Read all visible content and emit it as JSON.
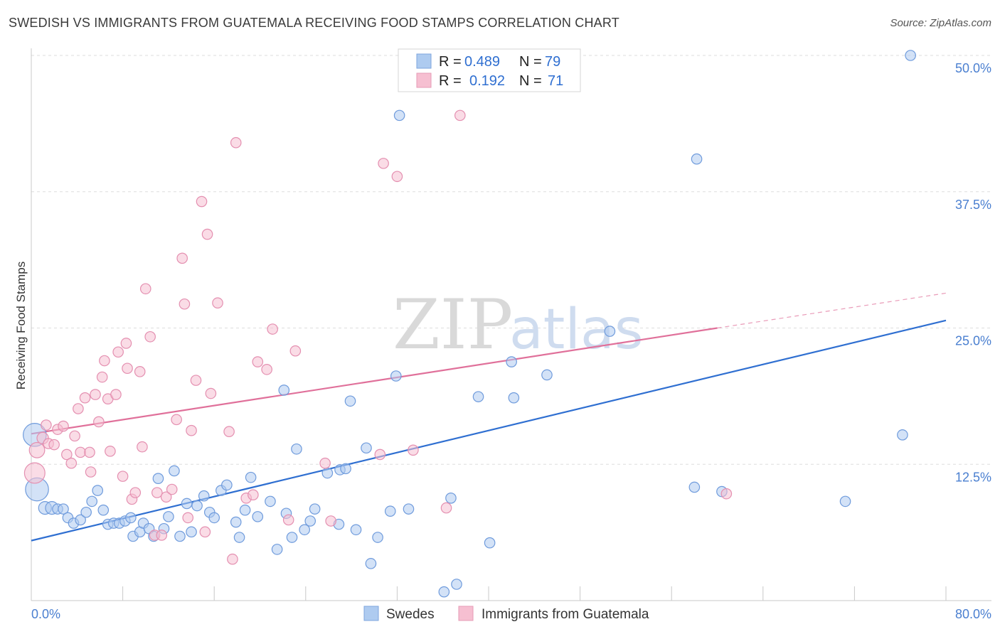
{
  "title": "SWEDISH VS IMMIGRANTS FROM GUATEMALA RECEIVING FOOD STAMPS CORRELATION CHART",
  "source": "Source: ZipAtlas.com",
  "watermark": {
    "zip": "ZIP",
    "atlas": "atlas"
  },
  "colors": {
    "blue": "#2f6fd1",
    "blue_fill": "#aecbf0",
    "pink": "#e0709a",
    "pink_fill": "#f6bfd1"
  },
  "legend": {
    "rows": [
      {
        "r_label": "R =",
        "r_value": "0.489",
        "n_label": "N =",
        "n_value": "79"
      },
      {
        "r_label": "R =",
        "r_value": "0.192",
        "n_label": "N =",
        "n_value": "71"
      }
    ]
  },
  "bottom_legend": [
    "Swedes",
    "Immigrants from Guatemala"
  ],
  "chart_data": {
    "type": "scatter",
    "title": "SWEDISH VS IMMIGRANTS FROM GUATEMALA RECEIVING FOOD STAMPS CORRELATION CHART",
    "xlabel": "",
    "ylabel": "Receiving Food Stamps",
    "xlim": [
      0,
      80
    ],
    "ylim": [
      0,
      50
    ],
    "x_tick_labels": [
      "0.0%",
      "80.0%"
    ],
    "y_ticks": [
      12.5,
      25.0,
      37.5,
      50.0
    ],
    "y_tick_labels": [
      "12.5%",
      "25.0%",
      "37.5%",
      "50.0%"
    ],
    "grid": "horizontal dashed",
    "legend_placement": "top-center",
    "series": [
      {
        "name": "Swedes",
        "color": "#2f6fd1",
        "r": 0.489,
        "n": 79,
        "trend": {
          "x": [
            0,
            80
          ],
          "y": [
            5.5,
            25.7
          ]
        },
        "points": [
          [
            0.3,
            15.2,
            1.8
          ],
          [
            0.5,
            10.2,
            1.8
          ],
          [
            1.2,
            8.5,
            1.0
          ],
          [
            1.8,
            8.5,
            1.0
          ],
          [
            2.3,
            8.4,
            0.8
          ],
          [
            2.8,
            8.4,
            0.8
          ],
          [
            3.2,
            7.6,
            0.8
          ],
          [
            3.7,
            7.1,
            0.8
          ],
          [
            4.3,
            7.4,
            0.8
          ],
          [
            4.8,
            8.1,
            0.8
          ],
          [
            5.3,
            9.1,
            0.8
          ],
          [
            5.8,
            10.1,
            0.8
          ],
          [
            6.3,
            8.3,
            0.8
          ],
          [
            6.7,
            7.0,
            0.8
          ],
          [
            7.2,
            7.1,
            0.8
          ],
          [
            7.7,
            7.1,
            0.8
          ],
          [
            8.2,
            7.3,
            0.8
          ],
          [
            8.7,
            7.6,
            0.8
          ],
          [
            8.9,
            5.9,
            0.8
          ],
          [
            9.5,
            6.3,
            0.8
          ],
          [
            9.8,
            7.1,
            0.8
          ],
          [
            10.3,
            6.6,
            0.8
          ],
          [
            10.7,
            5.9,
            0.8
          ],
          [
            11.1,
            11.2,
            0.8
          ],
          [
            11.6,
            6.6,
            0.8
          ],
          [
            12.0,
            7.7,
            0.8
          ],
          [
            12.5,
            11.9,
            0.8
          ],
          [
            13.0,
            5.9,
            0.8
          ],
          [
            13.6,
            8.9,
            0.8
          ],
          [
            14.0,
            6.3,
            0.8
          ],
          [
            14.5,
            8.7,
            0.8
          ],
          [
            15.1,
            9.6,
            0.8
          ],
          [
            15.6,
            8.1,
            0.8
          ],
          [
            16.0,
            7.6,
            0.8
          ],
          [
            16.6,
            10.1,
            0.8
          ],
          [
            17.1,
            10.6,
            0.8
          ],
          [
            17.9,
            7.2,
            0.8
          ],
          [
            18.2,
            5.8,
            0.8
          ],
          [
            18.7,
            8.3,
            0.8
          ],
          [
            19.2,
            11.3,
            0.8
          ],
          [
            19.8,
            7.7,
            0.8
          ],
          [
            20.9,
            9.1,
            0.8
          ],
          [
            21.5,
            4.7,
            0.8
          ],
          [
            22.1,
            19.3,
            0.8
          ],
          [
            22.3,
            8.0,
            0.8
          ],
          [
            22.8,
            5.8,
            0.8
          ],
          [
            23.2,
            13.9,
            0.8
          ],
          [
            23.9,
            6.5,
            0.8
          ],
          [
            24.4,
            7.3,
            0.8
          ],
          [
            24.8,
            8.4,
            0.8
          ],
          [
            25.9,
            11.7,
            0.8
          ],
          [
            26.9,
            7.0,
            0.8
          ],
          [
            27.0,
            12.0,
            0.8
          ],
          [
            27.5,
            12.1,
            0.8
          ],
          [
            27.9,
            18.3,
            0.8
          ],
          [
            28.4,
            6.5,
            0.8
          ],
          [
            29.3,
            14.0,
            0.8
          ],
          [
            29.7,
            3.4,
            0.8
          ],
          [
            30.3,
            5.8,
            0.8
          ],
          [
            31.4,
            8.2,
            0.8
          ],
          [
            31.9,
            20.6,
            0.8
          ],
          [
            32.2,
            44.5,
            0.8
          ],
          [
            33.0,
            8.4,
            0.8
          ],
          [
            36.1,
            0.8,
            0.8
          ],
          [
            36.7,
            9.4,
            0.8
          ],
          [
            37.2,
            1.5,
            0.8
          ],
          [
            39.1,
            18.7,
            0.8
          ],
          [
            40.1,
            5.3,
            0.8
          ],
          [
            42.0,
            21.9,
            0.8
          ],
          [
            42.2,
            18.6,
            0.8
          ],
          [
            45.1,
            20.7,
            0.8
          ],
          [
            50.6,
            24.7,
            0.8
          ],
          [
            58.0,
            10.4,
            0.8
          ],
          [
            58.2,
            40.5,
            0.8
          ],
          [
            60.4,
            10.0,
            0.8
          ],
          [
            71.2,
            9.1,
            0.8
          ],
          [
            76.2,
            15.2,
            0.8
          ],
          [
            76.9,
            50.0,
            0.8
          ]
        ]
      },
      {
        "name": "Immigrants from Guatemala",
        "color": "#e0709a",
        "r": 0.192,
        "n": 71,
        "trend": {
          "x": [
            0,
            60
          ],
          "y": [
            15.3,
            25.0
          ]
        },
        "trend_dashed": {
          "x": [
            60,
            80
          ],
          "y": [
            25.0,
            28.2
          ]
        },
        "points": [
          [
            0.3,
            11.7,
            1.6
          ],
          [
            0.5,
            13.8,
            1.2
          ],
          [
            1.0,
            14.9,
            0.9
          ],
          [
            1.3,
            16.1,
            0.8
          ],
          [
            1.5,
            14.4,
            0.8
          ],
          [
            2.0,
            14.3,
            0.8
          ],
          [
            2.3,
            15.7,
            0.8
          ],
          [
            2.8,
            16.0,
            0.8
          ],
          [
            3.1,
            13.4,
            0.8
          ],
          [
            3.5,
            12.6,
            0.8
          ],
          [
            3.8,
            15.1,
            0.8
          ],
          [
            4.1,
            17.6,
            0.8
          ],
          [
            4.3,
            13.6,
            0.8
          ],
          [
            4.7,
            18.6,
            0.8
          ],
          [
            5.1,
            13.6,
            0.8
          ],
          [
            5.2,
            11.8,
            0.8
          ],
          [
            5.6,
            18.9,
            0.8
          ],
          [
            5.9,
            16.4,
            0.8
          ],
          [
            6.2,
            20.5,
            0.8
          ],
          [
            6.4,
            22.0,
            0.8
          ],
          [
            6.7,
            18.5,
            0.8
          ],
          [
            6.9,
            13.7,
            0.8
          ],
          [
            7.4,
            18.9,
            0.8
          ],
          [
            7.6,
            22.8,
            0.8
          ],
          [
            8.0,
            11.4,
            0.8
          ],
          [
            8.3,
            23.6,
            0.8
          ],
          [
            8.4,
            21.3,
            0.8
          ],
          [
            8.8,
            9.3,
            0.8
          ],
          [
            9.1,
            9.9,
            0.8
          ],
          [
            9.5,
            21.0,
            0.8
          ],
          [
            9.7,
            14.1,
            0.8
          ],
          [
            10.0,
            28.6,
            0.8
          ],
          [
            10.4,
            24.2,
            0.8
          ],
          [
            10.8,
            6.0,
            0.8
          ],
          [
            11.0,
            9.9,
            0.8
          ],
          [
            11.4,
            6.0,
            0.8
          ],
          [
            11.8,
            9.5,
            0.8
          ],
          [
            12.3,
            10.2,
            0.8
          ],
          [
            12.7,
            16.6,
            0.8
          ],
          [
            13.2,
            31.4,
            0.8
          ],
          [
            13.4,
            27.2,
            0.8
          ],
          [
            13.7,
            7.6,
            0.8
          ],
          [
            14.0,
            15.6,
            0.8
          ],
          [
            14.4,
            20.2,
            0.8
          ],
          [
            14.9,
            36.6,
            0.8
          ],
          [
            15.2,
            6.3,
            0.8
          ],
          [
            15.4,
            33.6,
            0.8
          ],
          [
            15.7,
            19.0,
            0.8
          ],
          [
            16.3,
            27.3,
            0.8
          ],
          [
            17.3,
            15.5,
            0.8
          ],
          [
            17.6,
            3.8,
            0.8
          ],
          [
            17.9,
            42.0,
            0.8
          ],
          [
            18.8,
            9.4,
            0.8
          ],
          [
            19.4,
            9.7,
            0.8
          ],
          [
            19.8,
            21.9,
            0.8
          ],
          [
            20.6,
            21.2,
            0.8
          ],
          [
            21.1,
            24.9,
            0.8
          ],
          [
            22.5,
            7.4,
            0.8
          ],
          [
            23.1,
            22.9,
            0.8
          ],
          [
            25.7,
            12.6,
            0.8
          ],
          [
            26.2,
            7.3,
            0.8
          ],
          [
            30.5,
            13.4,
            0.8
          ],
          [
            30.8,
            40.1,
            0.8
          ],
          [
            32.0,
            38.9,
            0.8
          ],
          [
            33.4,
            13.8,
            0.8
          ],
          [
            36.3,
            8.5,
            0.8
          ],
          [
            37.5,
            44.5,
            0.8
          ],
          [
            60.8,
            9.8,
            0.8
          ]
        ]
      }
    ]
  }
}
